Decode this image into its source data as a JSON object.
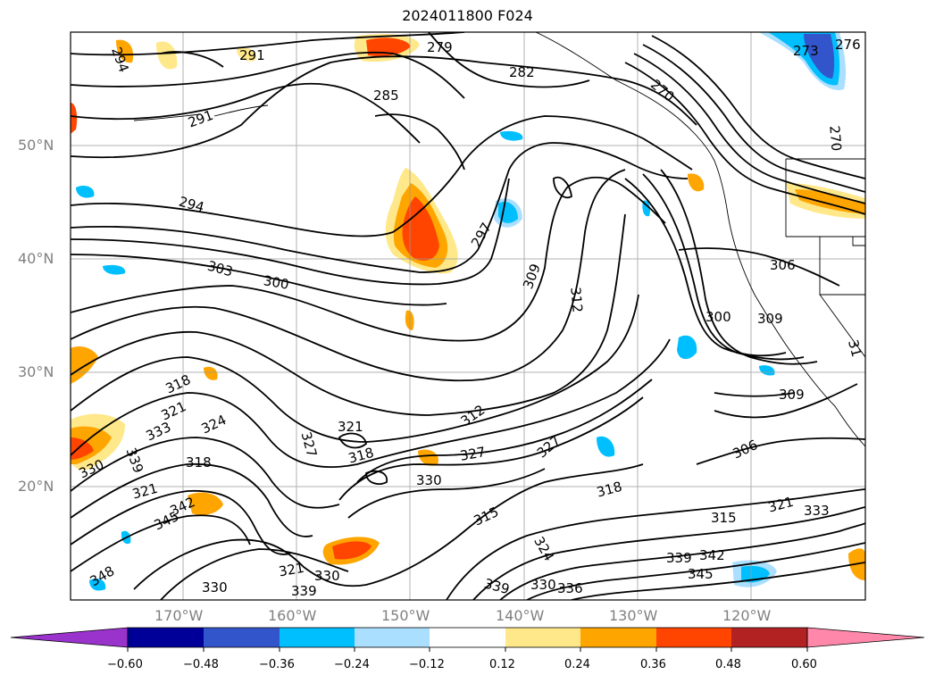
{
  "title": "2024011800 F024",
  "lat_labels": [
    "50°N",
    "40°N",
    "30°N",
    "20°N"
  ],
  "lon_labels": [
    "170°W",
    "160°W",
    "150°W",
    "140°W",
    "130°W",
    "120°W"
  ],
  "colorbar": {
    "ticks": [
      "−0.60",
      "−0.48",
      "−0.36",
      "−0.24",
      "−0.12",
      "0.12",
      "0.24",
      "0.36",
      "0.48",
      "0.60"
    ],
    "colors": [
      "#9933cc",
      "#000099",
      "#3355cc",
      "#00bfff",
      "#aadfff",
      "#ffffff",
      "#ffe88a",
      "#ffa500",
      "#ff4500",
      "#b22222",
      "#ff88aa"
    ]
  },
  "contour_labels": [
    "294",
    "291",
    "291",
    "285",
    "279",
    "282",
    "270",
    "270",
    "273",
    "276",
    "294",
    "303",
    "300",
    "297",
    "309",
    "312",
    "306",
    "300",
    "309",
    "318",
    "321",
    "324",
    "333",
    "330",
    "339",
    "321",
    "345",
    "342",
    "318",
    "321",
    "327",
    "330",
    "327",
    "318",
    "312",
    "315",
    "324",
    "318",
    "306",
    "309",
    "315",
    "321",
    "333",
    "339",
    "342",
    "345",
    "327",
    "330",
    "339",
    "330",
    "336",
    "348",
    "321",
    "330",
    "339",
    "31"
  ]
}
